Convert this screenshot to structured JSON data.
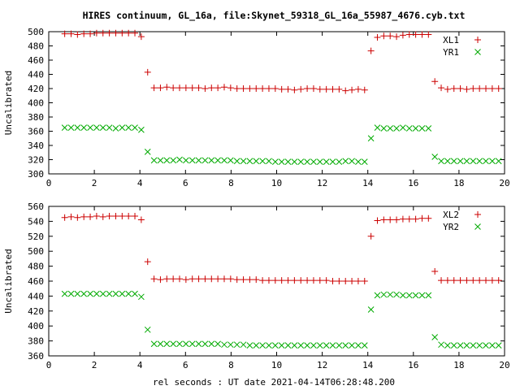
{
  "title": "HIRES continuum, GL_16a, file:Skynet_59318_GL_16a_55987_4676.cyb.txt",
  "xlabel": "rel seconds : UT date 2021-04-14T06:28:48.200",
  "chart_data": [
    {
      "type": "scatter",
      "ylabel": "Uncalibrated",
      "xlim": [
        0,
        20
      ],
      "ylim": [
        300,
        500
      ],
      "xticks": [
        0,
        2,
        4,
        6,
        8,
        10,
        12,
        14,
        16,
        18,
        20
      ],
      "yticks": [
        300,
        320,
        340,
        360,
        380,
        400,
        420,
        440,
        460,
        480,
        500
      ],
      "legend_position": "top-right",
      "grid": false,
      "series": [
        {
          "name": "XL1",
          "marker": "plus",
          "color": "#cc0000",
          "x": [
            0.7,
            0.98,
            1.26,
            1.54,
            1.82,
            2.1,
            2.38,
            2.66,
            2.94,
            3.22,
            3.5,
            3.78,
            4.06,
            4.34,
            4.62,
            4.9,
            5.18,
            5.46,
            5.74,
            6.02,
            6.3,
            6.58,
            6.86,
            7.14,
            7.42,
            7.7,
            7.98,
            8.26,
            8.54,
            8.82,
            9.1,
            9.38,
            9.66,
            9.94,
            10.22,
            10.5,
            10.78,
            11.06,
            11.34,
            11.62,
            11.9,
            12.18,
            12.46,
            12.74,
            13.02,
            13.3,
            13.58,
            13.86,
            14.14,
            14.42,
            14.7,
            14.98,
            15.26,
            15.54,
            15.82,
            16.1,
            16.38,
            16.66,
            16.94,
            17.22,
            17.5,
            17.78,
            18.06,
            18.34,
            18.62,
            18.9,
            19.18,
            19.46,
            19.74
          ],
          "y": [
            497,
            497,
            496,
            497,
            497,
            498,
            498,
            498,
            498,
            498,
            498,
            498,
            493,
            443,
            421,
            421,
            422,
            421,
            421,
            421,
            421,
            421,
            420,
            421,
            421,
            422,
            421,
            420,
            420,
            420,
            420,
            420,
            420,
            420,
            419,
            419,
            418,
            419,
            420,
            420,
            419,
            419,
            419,
            419,
            417,
            418,
            419,
            418,
            473,
            492,
            494,
            494,
            493,
            495,
            496,
            496,
            496,
            496,
            430,
            421,
            419,
            420,
            420,
            419,
            420,
            420,
            420,
            420,
            420
          ],
          "note_x_shift": 0
        },
        {
          "name": "YR1",
          "marker": "cross",
          "color": "#00aa00",
          "x": [
            0.7,
            0.98,
            1.26,
            1.54,
            1.82,
            2.1,
            2.38,
            2.66,
            2.94,
            3.22,
            3.5,
            3.78,
            4.06,
            4.34,
            4.62,
            4.9,
            5.18,
            5.46,
            5.74,
            6.02,
            6.3,
            6.58,
            6.86,
            7.14,
            7.42,
            7.7,
            7.98,
            8.26,
            8.54,
            8.82,
            9.1,
            9.38,
            9.66,
            9.94,
            10.22,
            10.5,
            10.78,
            11.06,
            11.34,
            11.62,
            11.9,
            12.18,
            12.46,
            12.74,
            13.02,
            13.3,
            13.58,
            13.86,
            14.14,
            14.42,
            14.7,
            14.98,
            15.26,
            15.54,
            15.82,
            16.1,
            16.38,
            16.66,
            16.94,
            17.22,
            17.5,
            17.78,
            18.06,
            18.34,
            18.62,
            18.9,
            19.18,
            19.46,
            19.74
          ],
          "y": [
            365,
            365,
            365,
            365,
            365,
            365,
            365,
            365,
            364,
            365,
            365,
            365,
            362,
            331,
            319,
            319,
            319,
            319,
            320,
            319,
            319,
            319,
            319,
            319,
            319,
            319,
            319,
            318,
            318,
            318,
            318,
            318,
            318,
            317,
            317,
            317,
            317,
            317,
            317,
            317,
            317,
            317,
            317,
            317,
            318,
            318,
            317,
            317,
            350,
            365,
            364,
            364,
            364,
            365,
            364,
            364,
            364,
            364,
            324,
            318,
            318,
            318,
            318,
            318,
            318,
            318,
            318,
            318,
            318
          ]
        }
      ]
    },
    {
      "type": "scatter",
      "ylabel": "Uncalibrated",
      "xlim": [
        0,
        20
      ],
      "ylim": [
        360,
        560
      ],
      "xticks": [
        0,
        2,
        4,
        6,
        8,
        10,
        12,
        14,
        16,
        18,
        20
      ],
      "yticks": [
        360,
        380,
        400,
        420,
        440,
        460,
        480,
        500,
        520,
        540,
        560
      ],
      "legend_position": "top-right",
      "grid": false,
      "series": [
        {
          "name": "XL2",
          "marker": "plus",
          "color": "#cc0000",
          "x": [
            0.7,
            0.98,
            1.26,
            1.54,
            1.82,
            2.1,
            2.38,
            2.66,
            2.94,
            3.22,
            3.5,
            3.78,
            4.06,
            4.34,
            4.62,
            4.9,
            5.18,
            5.46,
            5.74,
            6.02,
            6.3,
            6.58,
            6.86,
            7.14,
            7.42,
            7.7,
            7.98,
            8.26,
            8.54,
            8.82,
            9.1,
            9.38,
            9.66,
            9.94,
            10.22,
            10.5,
            10.78,
            11.06,
            11.34,
            11.62,
            11.9,
            12.18,
            12.46,
            12.74,
            13.02,
            13.3,
            13.58,
            13.86,
            14.14,
            14.42,
            14.7,
            14.98,
            15.26,
            15.54,
            15.82,
            16.1,
            16.38,
            16.66,
            16.94,
            17.22,
            17.5,
            17.78,
            18.06,
            18.34,
            18.62,
            18.9,
            19.18,
            19.46,
            19.74
          ],
          "y": [
            545,
            546,
            545,
            546,
            546,
            547,
            546,
            547,
            547,
            547,
            547,
            547,
            542,
            486,
            463,
            462,
            463,
            463,
            463,
            462,
            463,
            463,
            463,
            463,
            463,
            463,
            463,
            462,
            462,
            462,
            462,
            461,
            461,
            461,
            461,
            461,
            461,
            461,
            461,
            461,
            461,
            461,
            460,
            460,
            460,
            460,
            460,
            460,
            520,
            541,
            542,
            542,
            542,
            543,
            543,
            543,
            544,
            544,
            473,
            461,
            461,
            461,
            461,
            461,
            461,
            461,
            461,
            461,
            461
          ]
        },
        {
          "name": "YR2",
          "marker": "cross",
          "color": "#00aa00",
          "x": [
            0.7,
            0.98,
            1.26,
            1.54,
            1.82,
            2.1,
            2.38,
            2.66,
            2.94,
            3.22,
            3.5,
            3.78,
            4.06,
            4.34,
            4.62,
            4.9,
            5.18,
            5.46,
            5.74,
            6.02,
            6.3,
            6.58,
            6.86,
            7.14,
            7.42,
            7.7,
            7.98,
            8.26,
            8.54,
            8.82,
            9.1,
            9.38,
            9.66,
            9.94,
            10.22,
            10.5,
            10.78,
            11.06,
            11.34,
            11.62,
            11.9,
            12.18,
            12.46,
            12.74,
            13.02,
            13.3,
            13.58,
            13.86,
            14.14,
            14.42,
            14.7,
            14.98,
            15.26,
            15.54,
            15.82,
            16.1,
            16.38,
            16.66,
            16.94,
            17.22,
            17.5,
            17.78,
            18.06,
            18.34,
            18.62,
            18.9,
            19.18,
            19.46,
            19.74
          ],
          "y": [
            443,
            443,
            443,
            443,
            443,
            443,
            443,
            443,
            443,
            443,
            443,
            443,
            439,
            395,
            376,
            376,
            376,
            376,
            376,
            376,
            376,
            376,
            376,
            376,
            376,
            375,
            375,
            375,
            375,
            374,
            374,
            374,
            374,
            374,
            374,
            374,
            374,
            374,
            374,
            374,
            374,
            374,
            374,
            374,
            374,
            374,
            374,
            374,
            422,
            441,
            442,
            442,
            442,
            441,
            441,
            441,
            441,
            441,
            385,
            375,
            374,
            374,
            374,
            374,
            374,
            374,
            374,
            374,
            374
          ]
        }
      ]
    }
  ]
}
